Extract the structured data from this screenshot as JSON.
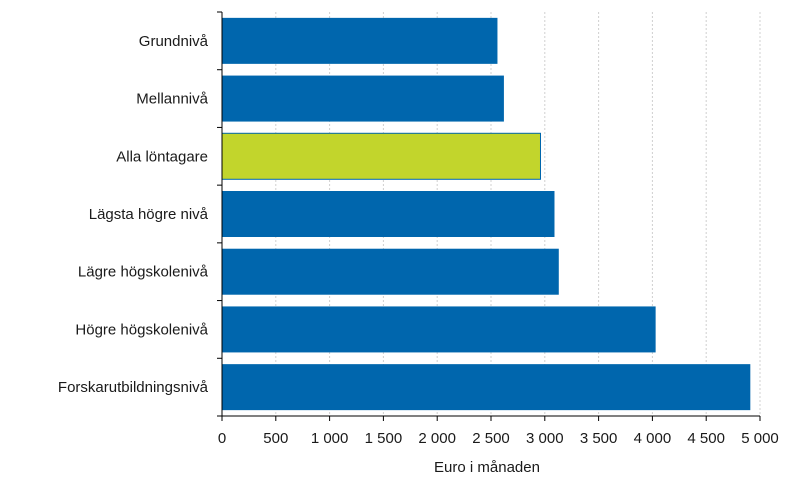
{
  "chart_data": {
    "type": "bar",
    "orientation": "horizontal",
    "categories": [
      "Grundnivå",
      "Mellannivå",
      "Alla löntagare",
      "Lägsta högre nivå",
      "Lägre högskolenivå",
      "Högre högskolenivå",
      "Forskarutbildningsnivå"
    ],
    "values": [
      2560,
      2620,
      2960,
      3090,
      3130,
      4030,
      4910
    ],
    "highlight_category": "Alla löntagare",
    "colors": {
      "bar": "#0066ad",
      "highlight": "#c2d52c",
      "grid": "#d0d0d0",
      "axis": "#000000"
    },
    "xlabel": "Euro i månaden",
    "xlim": [
      0,
      5000
    ],
    "xticks": [
      0,
      500,
      1000,
      1500,
      2000,
      2500,
      3000,
      3500,
      4000,
      4500,
      5000
    ],
    "xtick_labels": [
      "0",
      "500",
      "1 000",
      "1 500",
      "2 000",
      "2 500",
      "3 000",
      "3 500",
      "4 000",
      "4 500",
      "5 000"
    ],
    "grid": "vertical dashed"
  }
}
